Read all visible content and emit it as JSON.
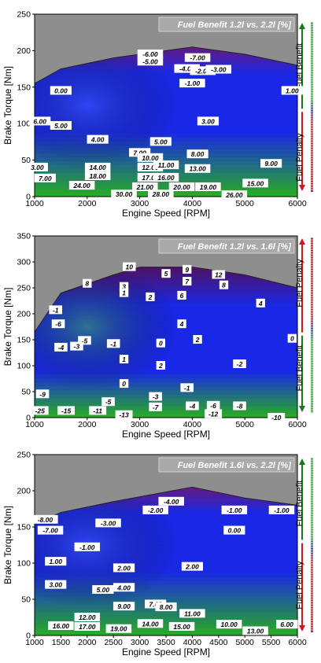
{
  "chart_data": [
    {
      "type": "heatmap",
      "title": "Fuel Benefit 1.2l vs. 2.2l [%]",
      "xlabel": "Engine Speed [RPM]",
      "ylabel": "Brake Torque [Nm]",
      "xlim": [
        1000,
        6000
      ],
      "ylim": [
        0,
        250
      ],
      "xticks": [
        "1000",
        "2000",
        "3000",
        "4000",
        "5000",
        "6000"
      ],
      "yticks": [
        "0",
        "50",
        "100",
        "150",
        "200",
        "250"
      ],
      "envelope": [
        [
          1000,
          155
        ],
        [
          1500,
          175
        ],
        [
          2500,
          190
        ],
        [
          4000,
          205
        ],
        [
          5000,
          195
        ],
        [
          6000,
          180
        ]
      ],
      "legend_top": "Fuel Benefit",
      "legend_bottom": "Fuel Penalty",
      "labels": [
        {
          "x": 1500,
          "y": 145,
          "t": "0.00"
        },
        {
          "x": 3200,
          "y": 195,
          "t": "-6.00"
        },
        {
          "x": 3200,
          "y": 185,
          "t": "-5.00"
        },
        {
          "x": 4100,
          "y": 190,
          "t": "-7.00"
        },
        {
          "x": 3900,
          "y": 175,
          "t": "-4.00"
        },
        {
          "x": 4200,
          "y": 172,
          "t": "-2.00"
        },
        {
          "x": 4500,
          "y": 174,
          "t": "-3.00"
        },
        {
          "x": 4000,
          "y": 155,
          "t": "-1.00"
        },
        {
          "x": 5900,
          "y": 145,
          "t": "1.00"
        },
        {
          "x": 1100,
          "y": 103,
          "t": "6.00"
        },
        {
          "x": 1500,
          "y": 97,
          "t": "5.00"
        },
        {
          "x": 2200,
          "y": 78,
          "t": "4.00"
        },
        {
          "x": 4300,
          "y": 103,
          "t": "3.00"
        },
        {
          "x": 3400,
          "y": 75,
          "t": "5.00"
        },
        {
          "x": 3000,
          "y": 60,
          "t": "7.00"
        },
        {
          "x": 3200,
          "y": 53,
          "t": "10.00"
        },
        {
          "x": 4100,
          "y": 58,
          "t": "8.00"
        },
        {
          "x": 3200,
          "y": 40,
          "t": "12.00"
        },
        {
          "x": 3500,
          "y": 43,
          "t": "11.00"
        },
        {
          "x": 4100,
          "y": 38,
          "t": "13.00"
        },
        {
          "x": 5500,
          "y": 45,
          "t": "9.00"
        },
        {
          "x": 1050,
          "y": 40,
          "t": "3.00"
        },
        {
          "x": 1200,
          "y": 25,
          "t": "7.00"
        },
        {
          "x": 2200,
          "y": 40,
          "t": "14.00"
        },
        {
          "x": 2200,
          "y": 28,
          "t": "18.00"
        },
        {
          "x": 3200,
          "y": 26,
          "t": "17.00"
        },
        {
          "x": 3500,
          "y": 26,
          "t": "16.00"
        },
        {
          "x": 1900,
          "y": 15,
          "t": "24.00"
        },
        {
          "x": 3100,
          "y": 13,
          "t": "21.00"
        },
        {
          "x": 3800,
          "y": 13,
          "t": "20.00"
        },
        {
          "x": 4300,
          "y": 13,
          "t": "19.00"
        },
        {
          "x": 5200,
          "y": 18,
          "t": "15.00"
        },
        {
          "x": 2700,
          "y": 3,
          "t": "30.00"
        },
        {
          "x": 3400,
          "y": 3,
          "t": "28.00"
        },
        {
          "x": 4800,
          "y": 2,
          "t": "26.00"
        }
      ]
    },
    {
      "type": "heatmap",
      "title": "Fuel Benefit 1.2l vs. 1.6l [%]",
      "xlabel": "Engine Speed [RPM]",
      "ylabel": "Brake Torque [Nm]",
      "xlim": [
        1000,
        6000
      ],
      "ylim": [
        0,
        350
      ],
      "xticks": [
        "1000",
        "2000",
        "3000",
        "4000",
        "5000",
        "6000"
      ],
      "yticks": [
        "0",
        "50",
        "100",
        "150",
        "200",
        "250",
        "300",
        "350"
      ],
      "envelope": [
        [
          1000,
          165
        ],
        [
          1500,
          240
        ],
        [
          2500,
          275
        ],
        [
          3000,
          290
        ],
        [
          4000,
          290
        ],
        [
          5000,
          275
        ],
        [
          6000,
          250
        ]
      ],
      "legend_top": "Fuel Penalty",
      "legend_bottom": "Fuel Benefit",
      "labels": [
        {
          "x": 2800,
          "y": 290,
          "t": "10"
        },
        {
          "x": 3900,
          "y": 285,
          "t": "9"
        },
        {
          "x": 3500,
          "y": 277,
          "t": "5"
        },
        {
          "x": 4500,
          "y": 275,
          "t": "12"
        },
        {
          "x": 2000,
          "y": 258,
          "t": "8"
        },
        {
          "x": 3900,
          "y": 262,
          "t": "7"
        },
        {
          "x": 4600,
          "y": 255,
          "t": "8"
        },
        {
          "x": 2700,
          "y": 252,
          "t": "3"
        },
        {
          "x": 2700,
          "y": 240,
          "t": "1"
        },
        {
          "x": 3200,
          "y": 232,
          "t": "2"
        },
        {
          "x": 3800,
          "y": 235,
          "t": "6"
        },
        {
          "x": 5300,
          "y": 220,
          "t": "4"
        },
        {
          "x": 1400,
          "y": 207,
          "t": "-1"
        },
        {
          "x": 1450,
          "y": 180,
          "t": "-6"
        },
        {
          "x": 3800,
          "y": 180,
          "t": "4"
        },
        {
          "x": 1950,
          "y": 148,
          "t": "-5"
        },
        {
          "x": 1800,
          "y": 137,
          "t": "-3"
        },
        {
          "x": 1500,
          "y": 135,
          "t": "-4"
        },
        {
          "x": 2500,
          "y": 142,
          "t": "-1"
        },
        {
          "x": 3400,
          "y": 143,
          "t": "0"
        },
        {
          "x": 4100,
          "y": 150,
          "t": "2"
        },
        {
          "x": 5900,
          "y": 152,
          "t": "0"
        },
        {
          "x": 2700,
          "y": 112,
          "t": "1"
        },
        {
          "x": 3400,
          "y": 100,
          "t": "2"
        },
        {
          "x": 4900,
          "y": 103,
          "t": "-2"
        },
        {
          "x": 2700,
          "y": 65,
          "t": "0"
        },
        {
          "x": 3900,
          "y": 57,
          "t": "-1"
        },
        {
          "x": 1150,
          "y": 45,
          "t": "-9"
        },
        {
          "x": 3300,
          "y": 40,
          "t": "-3"
        },
        {
          "x": 2400,
          "y": 30,
          "t": "-5"
        },
        {
          "x": 3300,
          "y": 20,
          "t": "-7"
        },
        {
          "x": 4000,
          "y": 22,
          "t": "-4"
        },
        {
          "x": 4400,
          "y": 23,
          "t": "-6"
        },
        {
          "x": 4900,
          "y": 22,
          "t": "-8"
        },
        {
          "x": 1100,
          "y": 13,
          "t": "-25"
        },
        {
          "x": 1600,
          "y": 13,
          "t": "-15"
        },
        {
          "x": 2200,
          "y": 13,
          "t": "-11"
        },
        {
          "x": 2700,
          "y": 5,
          "t": "-13"
        },
        {
          "x": 4400,
          "y": 7,
          "t": "-12"
        },
        {
          "x": 5600,
          "y": 0,
          "t": "-10"
        }
      ]
    },
    {
      "type": "heatmap",
      "title": "Fuel Benefit 1.6l vs. 2.2l [%]",
      "xlabel": "Engine Speed [RPM]",
      "ylabel": "Brake Torque [Nm]",
      "xlim": [
        1000,
        6000
      ],
      "ylim": [
        0,
        250
      ],
      "xticks": [
        "1000",
        "1500",
        "2000",
        "2500",
        "3000",
        "3500",
        "4000",
        "4500",
        "5000",
        "5500",
        "6000"
      ],
      "yticks": [
        "0",
        "50",
        "100",
        "150",
        "200",
        "250"
      ],
      "envelope": [
        [
          1000,
          155
        ],
        [
          1500,
          170
        ],
        [
          2500,
          185
        ],
        [
          4000,
          205
        ],
        [
          5000,
          190
        ],
        [
          6000,
          180
        ]
      ],
      "legend_top": "Fuel Benefit",
      "legend_bottom": "Fuel Penalty",
      "labels": [
        {
          "x": 3600,
          "y": 185,
          "t": "-4.00"
        },
        {
          "x": 3300,
          "y": 173,
          "t": "-2.00"
        },
        {
          "x": 4800,
          "y": 173,
          "t": "-1.00"
        },
        {
          "x": 5700,
          "y": 173,
          "t": "-1.00"
        },
        {
          "x": 1200,
          "y": 160,
          "t": "-8.00"
        },
        {
          "x": 1300,
          "y": 145,
          "t": "-7.00"
        },
        {
          "x": 2400,
          "y": 155,
          "t": "-3.00"
        },
        {
          "x": 4800,
          "y": 145,
          "t": "0.00"
        },
        {
          "x": 2000,
          "y": 122,
          "t": "-1.00"
        },
        {
          "x": 1400,
          "y": 102,
          "t": "1.00"
        },
        {
          "x": 2700,
          "y": 93,
          "t": "2.00"
        },
        {
          "x": 4000,
          "y": 95,
          "t": "2.00"
        },
        {
          "x": 1400,
          "y": 70,
          "t": "3.00"
        },
        {
          "x": 2300,
          "y": 63,
          "t": "5.00"
        },
        {
          "x": 2700,
          "y": 66,
          "t": "4.00"
        },
        {
          "x": 2700,
          "y": 40,
          "t": "9.00"
        },
        {
          "x": 3300,
          "y": 43,
          "t": "7.00"
        },
        {
          "x": 3500,
          "y": 39,
          "t": "8.00"
        },
        {
          "x": 4000,
          "y": 30,
          "t": "11.00"
        },
        {
          "x": 2000,
          "y": 25,
          "t": "12.00"
        },
        {
          "x": 2000,
          "y": 12,
          "t": "17.00"
        },
        {
          "x": 1500,
          "y": 13,
          "t": "16.00"
        },
        {
          "x": 3200,
          "y": 16,
          "t": "14.00"
        },
        {
          "x": 2600,
          "y": 9,
          "t": "19.00"
        },
        {
          "x": 3800,
          "y": 12,
          "t": "15.00"
        },
        {
          "x": 4700,
          "y": 15,
          "t": "10.00"
        },
        {
          "x": 5200,
          "y": 6,
          "t": "13.00"
        },
        {
          "x": 5800,
          "y": 15,
          "t": "6.00"
        }
      ]
    }
  ]
}
